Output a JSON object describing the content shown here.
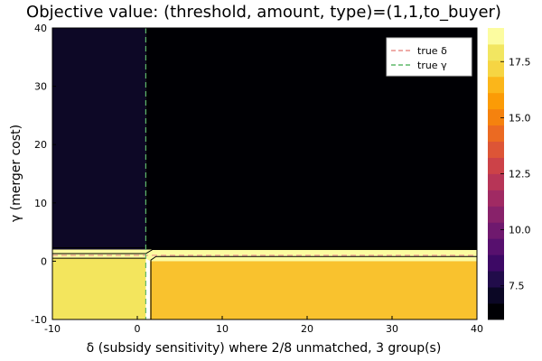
{
  "chart_data": {
    "type": "heatmap",
    "title": "Objective value: (threshold, amount, type)=(1,1,to_buyer)",
    "xlabel": "δ (subsidy sensitivity) where 2/8 unmatched, 3 group(s)",
    "ylabel": "γ (merger cost)",
    "xlim": [
      -10,
      40
    ],
    "ylim": [
      -10,
      40
    ],
    "x_ticks": [
      -10,
      0,
      10,
      20,
      30,
      40
    ],
    "y_ticks": [
      -10,
      0,
      10,
      20,
      30,
      40
    ],
    "grid": false,
    "legend_position": "top-right",
    "colorbar": {
      "levels": [
        6.0,
        7.0,
        8.0,
        9.0,
        10.0,
        11.0,
        12.0,
        13.0,
        14.0,
        15.0,
        16.0,
        17.0,
        18.0,
        19.0
      ],
      "colors": [
        "#000004",
        "#0b0725",
        "#210c4a",
        "#3d0965",
        "#57106e",
        "#6f196e",
        "#88226a",
        "#a02a63",
        "#b73557",
        "#cc4248",
        "#dd5536",
        "#eb6a22",
        "#f5820e",
        "#fb9b06",
        "#fbb61a",
        "#f6d543",
        "#f2e661",
        "#fcfca0"
      ],
      "ticks": [
        7.5,
        10.0,
        12.5,
        15.0,
        17.5
      ],
      "tick_labels": [
        "7.5",
        "10.0",
        "12.5",
        "15.0",
        "17.5"
      ]
    },
    "regions": [
      {
        "name": "upper-left",
        "x": [
          -10,
          1
        ],
        "y": [
          2,
          40
        ],
        "value": 6.8,
        "color": "#0d0826"
      },
      {
        "name": "upper-right",
        "x": [
          1,
          40
        ],
        "y": [
          2,
          40
        ],
        "value": 6.0,
        "color": "#000004"
      },
      {
        "name": "lower-left",
        "x": [
          -10,
          1
        ],
        "y": [
          -10,
          0.5
        ],
        "value": 18.5,
        "color": "#f3e55d"
      },
      {
        "name": "lower-right",
        "x": [
          1.5,
          40
        ],
        "y": [
          -10,
          0
        ],
        "value": 16.5,
        "color": "#f9c22e"
      }
    ],
    "reference_lines": [
      {
        "label": "true δ",
        "orientation": "horizontal",
        "value": 1,
        "color": "#e8908b",
        "style": "dashed"
      },
      {
        "label": "true γ",
        "orientation": "vertical",
        "value": 1,
        "color": "#5fb86a",
        "style": "dashed"
      }
    ]
  }
}
